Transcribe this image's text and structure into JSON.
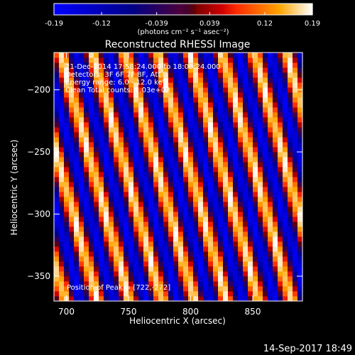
{
  "colorbar": {
    "ticks": [
      "-0.19",
      "-0.12",
      "-0.039",
      "0.039",
      "0.12",
      "0.19"
    ],
    "tick_values": [
      -0.19,
      -0.12,
      -0.039,
      0.039,
      0.12,
      0.19
    ],
    "range": [
      -0.19,
      0.19
    ],
    "unit_label": "(photons cm⁻² s⁻¹ asec⁻²)",
    "colormap": "red-temperature"
  },
  "chart_data": {
    "type": "heatmap",
    "title": "Reconstructed RHESSI Image",
    "xlabel": "Heliocentric X (arcsec)",
    "ylabel": "Heliocentric Y (arcsec)",
    "xlim": [
      690,
      890
    ],
    "ylim": [
      -370,
      -170
    ],
    "x_ticks": [
      700,
      750,
      800,
      850
    ],
    "y_ticks": [
      -200,
      -250,
      -300,
      -350
    ],
    "pixel_scale_arcsec": 4,
    "pattern": "diagonal stripes"
  },
  "annotations": [
    "21-Dec-2014 17:58:24.000 to 18:08:24.000",
    "Detectors: 3F 6F 7F 8F, Att 0",
    "Energy range: 6.0 - 12.0 keV",
    "Clean    Total counts: 1.03e+03"
  ],
  "peak_label": "Position of Peak = [722,-272]",
  "footer_date": "14-Sep-2017 18:49",
  "colors": {
    "background": "#000000",
    "foreground": "#ffffff"
  }
}
